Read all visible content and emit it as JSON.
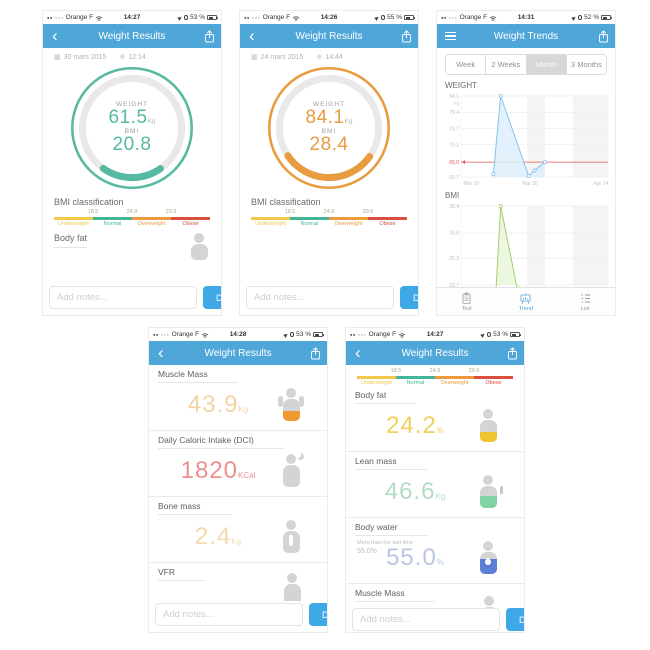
{
  "colors": {
    "nav_blue": "#4fa6d9",
    "done_blue": "#3fa9e8",
    "gauge_teal": "#56b9a2",
    "gauge_orange": "#e99b40",
    "bar_yellow": "#f2c94c",
    "bar_teal": "#42b598",
    "bar_orange": "#ef9a3c",
    "bar_red": "#d9503f",
    "muscle_value": "#f3d3a2",
    "dci_value": "#ee8f8f",
    "bone_value": "#f5d8ae",
    "bodyfat_value": "#f2cf5b",
    "lean_value": "#b2ddc4",
    "water_value": "#b9c6e2",
    "trend_active": "#4fa6d9"
  },
  "bmi_scale": {
    "title": "BMI classification",
    "thresholds": [
      "18.5",
      "24.9",
      "29.9"
    ],
    "segments": [
      {
        "label": "Underweight"
      },
      {
        "label": "Normal"
      },
      {
        "label": "Overweight"
      },
      {
        "label": "Obese"
      }
    ]
  },
  "notes": {
    "placeholder": "Add notes...",
    "done": "Done"
  },
  "screens": {
    "s1": {
      "status": {
        "carrier": "Orange F",
        "time": "14:27",
        "battery": "53 %"
      },
      "nav_title": "Weight Results",
      "date": "30 mars 2015",
      "record_time": "12:14",
      "gauge": {
        "weight_label": "WEIGHT",
        "weight_value": "61.5",
        "weight_unit": "Kg",
        "bmi_label": "BMI",
        "bmi_value": "20.8"
      },
      "section_title": "Body fat"
    },
    "s2": {
      "status": {
        "carrier": "Orange F",
        "time": "14:26",
        "battery": "55 %"
      },
      "nav_title": "Weight Results",
      "date": "24 mars 2015",
      "record_time": "14:44",
      "gauge": {
        "weight_label": "WEIGHT",
        "weight_value": "84.1",
        "weight_unit": "Kg",
        "bmi_label": "BMI",
        "bmi_value": "28.4"
      }
    },
    "s3": {
      "status": {
        "carrier": "Orange F",
        "time": "14:31",
        "battery": "52 %"
      },
      "nav_title": "Weight Trends",
      "range_tabs": [
        {
          "label": "Week"
        },
        {
          "label": "2 Weeks"
        },
        {
          "label": "Month",
          "selected": true
        },
        {
          "label": "3 Months"
        }
      ],
      "tabbar": [
        {
          "label": "Test"
        },
        {
          "label": "Trend",
          "active": true
        },
        {
          "label": "List"
        }
      ]
    },
    "s4": {
      "status": {
        "carrier": "Orange F",
        "time": "14:28",
        "battery": "53 %"
      },
      "nav_title": "Weight Results",
      "metrics": [
        {
          "title": "Muscle Mass",
          "value": "43.9",
          "unit": "Kg"
        },
        {
          "title": "Daily Caloric Intake (DCI)",
          "value": "1820",
          "unit": "KCal"
        },
        {
          "title": "Bone mass",
          "value": "2.4",
          "unit": "Kg"
        },
        {
          "title": "VFR"
        }
      ]
    },
    "s5": {
      "status": {
        "carrier": "Orange F",
        "time": "14:27",
        "battery": "53 %"
      },
      "nav_title": "Weight Results",
      "metrics": [
        {
          "title": "Body fat",
          "value": "24.2",
          "unit": "%"
        },
        {
          "title": "Lean mass",
          "value": "46.6",
          "unit": "Kg"
        },
        {
          "title": "Body water",
          "note1": "More than the last time",
          "note2": "55.0%",
          "value": "55.0",
          "unit": "%"
        },
        {
          "title": "Muscle Mass"
        }
      ]
    }
  },
  "chart_data": [
    {
      "type": "line",
      "title": "WEIGHT",
      "ylabel_unit": "Kg",
      "color": "#85c3e8",
      "fill": "#ddeefa",
      "ylim": [
        60.7,
        84.1
      ],
      "yticks": [
        84.1,
        79.4,
        74.7,
        70.1,
        60.7
      ],
      "goal": {
        "value": 65.0,
        "label": "65.0",
        "color": "#e05a4e"
      },
      "xticks": [
        {
          "f": 0.07,
          "label": "Mar 16"
        },
        {
          "f": 0.47,
          "label": "Mar 30"
        },
        {
          "f": 0.95,
          "label": "Apr 14"
        }
      ],
      "points": [
        {
          "f": 0.22,
          "y": 61.5
        },
        {
          "f": 0.27,
          "y": 84.1
        },
        {
          "f": 0.46,
          "y": 61.0
        },
        {
          "f": 0.5,
          "y": 62.6
        },
        {
          "f": 0.57,
          "y": 65.0
        }
      ],
      "bands": [
        [
          0.45,
          0.57
        ],
        [
          0.76,
          1.0
        ]
      ],
      "legend": "none",
      "grid": true
    },
    {
      "type": "line",
      "title": "BMI",
      "color": "#a5cf6e",
      "fill": "#e9f4da",
      "ylim": [
        23.7,
        28.4
      ],
      "yticks": [
        28.4,
        26.8,
        25.3,
        23.7
      ],
      "points": [
        {
          "f": 0.235,
          "y": 22.9
        },
        {
          "f": 0.27,
          "y": 28.4
        },
        {
          "f": 0.4,
          "y": 22.7
        }
      ],
      "bands": [
        [
          0.45,
          0.57
        ],
        [
          0.76,
          1.0
        ]
      ],
      "legend": "none",
      "grid": true
    }
  ]
}
